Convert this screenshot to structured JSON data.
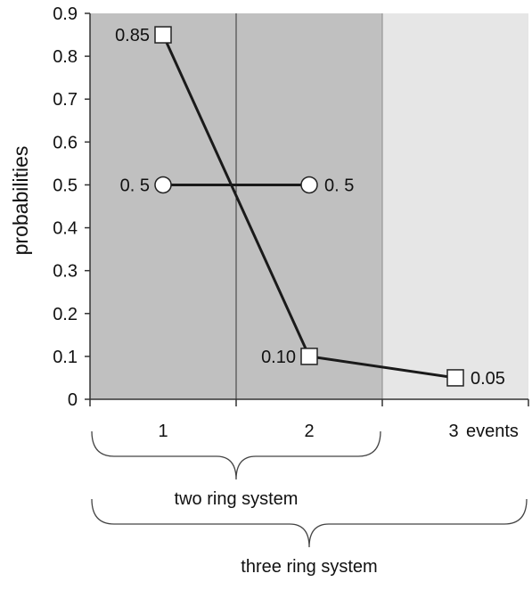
{
  "chart_data": {
    "type": "line",
    "xlabel": "events",
    "ylabel": "probabilities",
    "ylim": [
      0,
      0.9
    ],
    "y_ticks": [
      "0",
      "0.1",
      "0.2",
      "0.3",
      "0.4",
      "0.5",
      "0.6",
      "0.7",
      "0.8",
      "0.9"
    ],
    "x_ticks": [
      "1",
      "2",
      "3"
    ],
    "grid": false,
    "regions": [
      {
        "from": 0.5,
        "to": 2.5,
        "color": "#c0c0c0"
      },
      {
        "from": 2.5,
        "to": 3.5,
        "color": "#e6e6e6"
      }
    ],
    "divider_x": 1.5,
    "series": [
      {
        "marker": "square",
        "x": [
          1,
          2,
          3
        ],
        "values": [
          0.85,
          0.1,
          0.05
        ],
        "point_labels": [
          "0.85",
          "0.10",
          "0.05"
        ],
        "label_sides": [
          "left",
          "left",
          "right"
        ]
      },
      {
        "marker": "circle",
        "x": [
          1,
          2
        ],
        "values": [
          0.5,
          0.5
        ],
        "point_labels": [
          "0. 5",
          "0. 5"
        ],
        "label_sides": [
          "left",
          "right"
        ]
      }
    ],
    "braces": [
      {
        "from": 0.5,
        "to": 2.5,
        "label": "two ring system"
      },
      {
        "from": 0.5,
        "to": 3.5,
        "label": "three ring system"
      }
    ]
  },
  "colors": {
    "dark_region": "#c0c0c0",
    "light_region": "#e6e6e6",
    "line": "#1a1a1a",
    "axis": "#333333"
  }
}
